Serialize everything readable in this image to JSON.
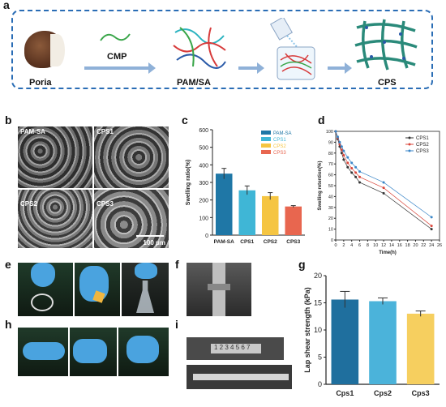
{
  "panels": {
    "a": "a",
    "b": "b",
    "c": "c",
    "d": "d",
    "e": "e",
    "f": "f",
    "g": "g",
    "h": "h",
    "i": "i"
  },
  "schematic": {
    "labels": {
      "poria": "Poria",
      "cmp": "CMP",
      "pamsa": "PAM/SA",
      "cps": "CPS"
    },
    "colors": {
      "border": "#2a6db5",
      "arrow": "#8fb1d8"
    }
  },
  "sem": {
    "tiles": [
      {
        "label": "PAM-SA"
      },
      {
        "label": "CPS1"
      },
      {
        "label": "CPS2"
      },
      {
        "label": "CPS3"
      }
    ],
    "scale_bar": "100 μm"
  },
  "i_photo": {
    "ruler_text": "1 2 3 4 5 6 7"
  },
  "chart_data": [
    {
      "id": "c",
      "type": "bar",
      "categories": [
        "PAM-SA",
        "CPS1",
        "CPS2",
        "CPS3"
      ],
      "values": [
        350,
        255,
        222,
        163
      ],
      "errors": [
        30,
        25,
        20,
        5
      ],
      "colors": [
        "#1f77a6",
        "#3fb6d6",
        "#f5c542",
        "#e8664f"
      ],
      "ylabel": "Swelling ratio(%)",
      "ylim": [
        0,
        600
      ],
      "yticks": [
        0,
        100,
        200,
        300,
        400,
        500,
        600
      ],
      "legend": [
        "PAM-SA",
        "CPS1",
        "CPS2",
        "CPS3"
      ],
      "legend_position": "top-right"
    },
    {
      "id": "d",
      "type": "line",
      "xlabel": "Time(h)",
      "ylabel": "Swelling retention(%)",
      "xlim": [
        0,
        26
      ],
      "ylim": [
        0,
        100
      ],
      "xticks": [
        0,
        2,
        4,
        6,
        8,
        10,
        12,
        14,
        16,
        18,
        20,
        22,
        24,
        26
      ],
      "yticks": [
        0,
        10,
        20,
        30,
        40,
        50,
        60,
        70,
        80,
        90,
        100
      ],
      "legend_position": "top-right",
      "x": [
        0,
        0.5,
        1,
        1.5,
        2,
        3,
        4,
        5,
        6,
        12,
        24
      ],
      "series": [
        {
          "name": "CPS1",
          "color": "#333333",
          "values": [
            100,
            93,
            86,
            80,
            74,
            67,
            62,
            58,
            53,
            43,
            10
          ]
        },
        {
          "name": "CPS2",
          "color": "#d9453a",
          "values": [
            100,
            94,
            88,
            83,
            78,
            71,
            66,
            62,
            58,
            48,
            13
          ]
        },
        {
          "name": "CPS3",
          "color": "#3a86c8",
          "values": [
            100,
            95,
            90,
            86,
            82,
            76,
            71,
            67,
            63,
            53,
            21
          ]
        }
      ]
    },
    {
      "id": "g",
      "type": "bar",
      "categories": [
        "Cps1",
        "Cps2",
        "Cps3"
      ],
      "values": [
        15.6,
        15.3,
        13.0
      ],
      "errors": [
        1.5,
        0.6,
        0.5
      ],
      "colors": [
        "#1f6f9e",
        "#4bb3da",
        "#f6cf5f"
      ],
      "ylabel": "Lap shear strength (kPa)",
      "ylim": [
        0,
        20
      ],
      "yticks": [
        0,
        5,
        10,
        15,
        20
      ]
    }
  ]
}
